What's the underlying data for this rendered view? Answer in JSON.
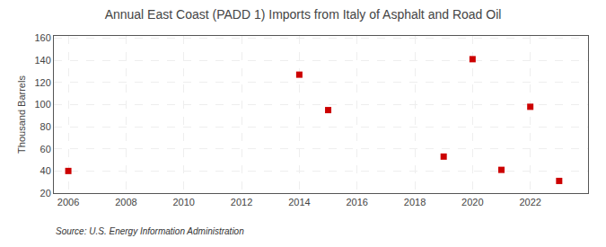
{
  "chart_data": {
    "type": "scatter",
    "title": "Annual East Coast (PADD 1) Imports from Italy of Asphalt and Road Oil",
    "ylabel": "Thousand Barrels",
    "annotations": [
      "Source: U.S. Energy Information Administration"
    ],
    "x": [
      2006,
      2014,
      2015,
      2019,
      2020,
      2021,
      2022,
      2023
    ],
    "values": [
      40,
      127,
      95,
      53,
      141,
      41,
      98,
      31
    ],
    "color": "#cc0000",
    "marker": "square",
    "xlim": [
      2005.5,
      2024
    ],
    "ylim": [
      20,
      162
    ],
    "xticks": [
      2006,
      2008,
      2010,
      2012,
      2014,
      2016,
      2018,
      2020,
      2022
    ],
    "yticks": [
      20,
      40,
      60,
      80,
      100,
      120,
      140,
      160
    ],
    "grid": true
  }
}
